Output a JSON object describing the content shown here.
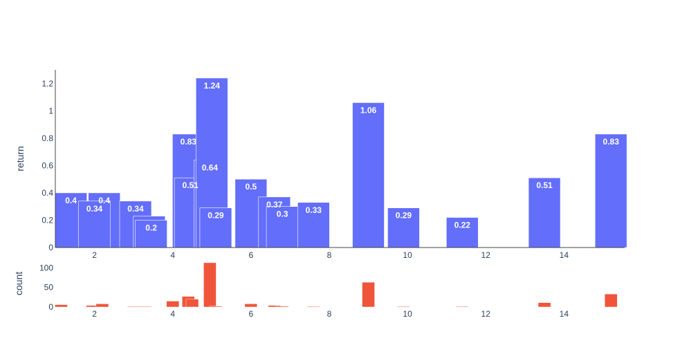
{
  "chart_data": [
    {
      "type": "bar",
      "ylabel": "return",
      "xlim": [
        1.0,
        15.55
      ],
      "ylim": [
        0,
        1.3
      ],
      "x_ticks": [
        2,
        4,
        6,
        8,
        10,
        12,
        14
      ],
      "y_ticks": [
        0,
        0.2,
        0.4,
        0.6,
        0.8,
        1,
        1.2
      ],
      "y_tick_labels": [
        "0",
        "0.2",
        "0.4",
        "0.6",
        "0.8",
        "1",
        "1.2"
      ],
      "bar_color": "#636efa",
      "bars": [
        {
          "x": 1.4,
          "value": 0.4,
          "label": "0.4"
        },
        {
          "x": 2.25,
          "value": 0.4,
          "label": "0.4"
        },
        {
          "x": 2.0,
          "value": 0.34,
          "label": "0.34"
        },
        {
          "x": 3.05,
          "value": 0.34,
          "label": "0.34"
        },
        {
          "x": 3.4,
          "value": 0.23,
          "label": ""
        },
        {
          "x": 3.45,
          "value": 0.2,
          "label": "0.2"
        },
        {
          "x": 4.4,
          "value": 0.83,
          "label": "0.83"
        },
        {
          "x": 4.45,
          "value": 0.51,
          "label": "0.51"
        },
        {
          "x": 4.95,
          "value": 0.64,
          "label": "0.64"
        },
        {
          "x": 5.0,
          "value": 1.24,
          "label": "1.24"
        },
        {
          "x": 5.1,
          "value": 0.29,
          "label": "0.29"
        },
        {
          "x": 6.0,
          "value": 0.5,
          "label": "0.5"
        },
        {
          "x": 6.6,
          "value": 0.37,
          "label": "0.37"
        },
        {
          "x": 6.8,
          "value": 0.3,
          "label": "0.3"
        },
        {
          "x": 7.6,
          "value": 0.33,
          "label": "0.33"
        },
        {
          "x": 9.0,
          "value": 1.06,
          "label": "1.06"
        },
        {
          "x": 9.9,
          "value": 0.29,
          "label": "0.29"
        },
        {
          "x": 11.4,
          "value": 0.22,
          "label": "0.22"
        },
        {
          "x": 13.5,
          "value": 0.51,
          "label": "0.51"
        },
        {
          "x": 15.2,
          "value": 0.83,
          "label": "0.83"
        }
      ]
    },
    {
      "type": "bar",
      "ylabel": "count",
      "xlim": [
        1.0,
        15.55
      ],
      "ylim": [
        0,
        120
      ],
      "x_ticks": [
        2,
        4,
        6,
        8,
        10,
        12,
        14
      ],
      "y_ticks": [
        0,
        50,
        100
      ],
      "y_tick_labels": [
        "0",
        "50",
        "100"
      ],
      "bar_color": "#ef553b",
      "bars": [
        {
          "x": 1.15,
          "value": 6
        },
        {
          "x": 1.95,
          "value": 4
        },
        {
          "x": 2.2,
          "value": 8
        },
        {
          "x": 3.0,
          "value": 1
        },
        {
          "x": 3.3,
          "value": 1
        },
        {
          "x": 4.0,
          "value": 15
        },
        {
          "x": 4.4,
          "value": 27
        },
        {
          "x": 4.5,
          "value": 20
        },
        {
          "x": 4.95,
          "value": 113
        },
        {
          "x": 5.1,
          "value": 2
        },
        {
          "x": 6.0,
          "value": 8
        },
        {
          "x": 6.6,
          "value": 4
        },
        {
          "x": 6.8,
          "value": 2
        },
        {
          "x": 7.6,
          "value": 1
        },
        {
          "x": 9.0,
          "value": 63
        },
        {
          "x": 9.9,
          "value": 1
        },
        {
          "x": 11.4,
          "value": 1
        },
        {
          "x": 13.5,
          "value": 11
        },
        {
          "x": 15.2,
          "value": 33
        }
      ]
    }
  ]
}
